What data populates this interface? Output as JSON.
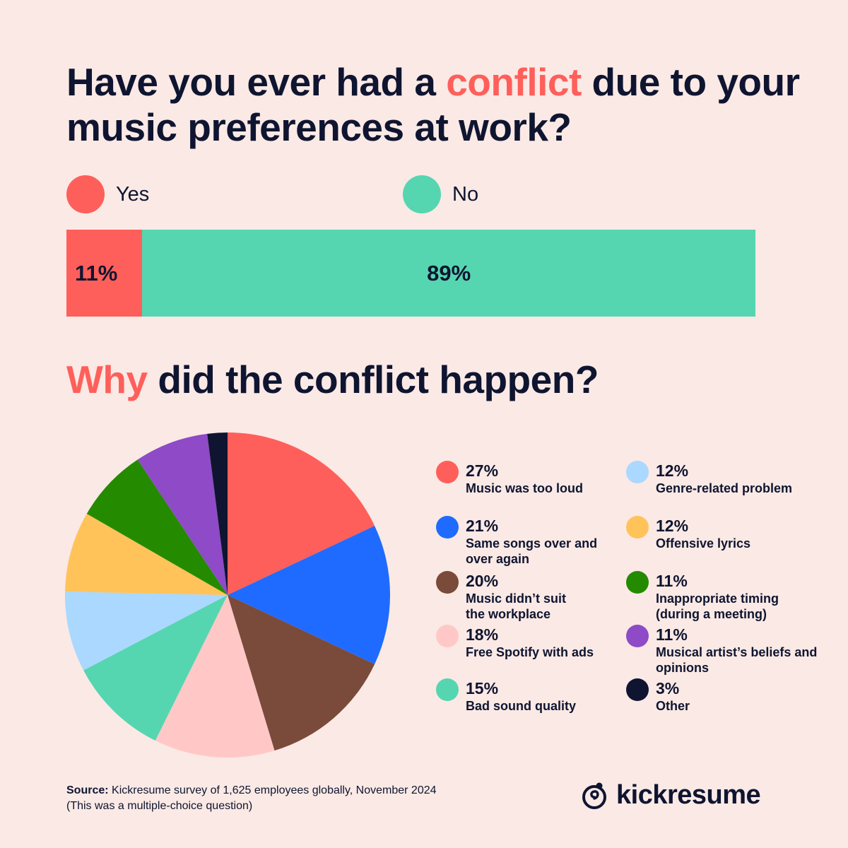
{
  "heading": {
    "part1": "Have you ever had a ",
    "accent": "conflict",
    "part2": " due to your music preferences at work?"
  },
  "top_legend": [
    {
      "label": "Yes",
      "color": "#ff5f5a"
    },
    {
      "label": "No",
      "color": "#55d6b0"
    }
  ],
  "subheading": {
    "accent": "Why",
    "rest": " did the conflict happen?"
  },
  "chart_data": [
    {
      "type": "bar",
      "orientation": "horizontal-stacked",
      "categories": [
        "Yes",
        "No"
      ],
      "values": [
        11,
        89
      ],
      "labels": [
        "11%",
        "89%"
      ],
      "colors": [
        "#ff5f5a",
        "#55d6b0"
      ]
    },
    {
      "type": "pie",
      "categories": [
        "Music was too loud",
        "Same songs over and over again",
        "Music didn’t suit the workplace",
        "Free Spotify with ads",
        "Bad sound quality",
        "Genre-related problem",
        "Offensive lyrics",
        "Inappropriate timing (during a meeting)",
        "Musical artist’s beliefs and opinions",
        "Other"
      ],
      "values": [
        27,
        21,
        20,
        18,
        15,
        12,
        12,
        11,
        11,
        3
      ],
      "labels": [
        "27%",
        "21%",
        "20%",
        "18%",
        "15%",
        "12%",
        "12%",
        "11%",
        "11%",
        "3%"
      ],
      "colors": [
        "#ff5f5a",
        "#1f6bff",
        "#7a4a3a",
        "#ffc8c6",
        "#55d6b0",
        "#aad8ff",
        "#ffc35a",
        "#248a00",
        "#8e4ac7",
        "#0f1530"
      ]
    }
  ],
  "source": {
    "label": "Source:",
    "text": " Kickresume survey of 1,625 employees globally, November 2024",
    "note": "(This was a multiple-choice question)"
  },
  "brand": {
    "name": "kickresume",
    "icon": "kickresume-logo-icon"
  }
}
